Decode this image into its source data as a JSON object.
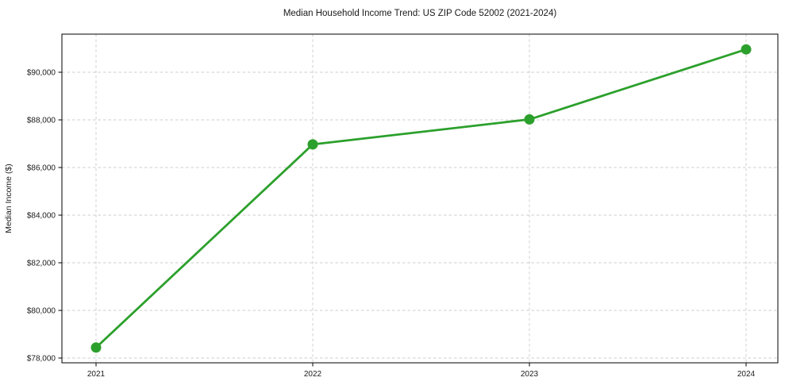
{
  "figure": {
    "background": "#ffffff"
  },
  "chart_data": {
    "type": "line",
    "title": "Median Household Income Trend: US ZIP Code 52002 (2021-2024)",
    "xlabel": "",
    "ylabel": "Median Income ($)",
    "categories": [
      "2021",
      "2022",
      "2023",
      "2024"
    ],
    "series": [
      {
        "name": "median-household-income",
        "values": [
          78440,
          86970,
          88020,
          90960
        ],
        "color": "#2ca02c",
        "marker": "circle",
        "line_style": "solid"
      }
    ],
    "ylim": [
      77800,
      91600
    ],
    "yticks": [
      78000,
      80000,
      82000,
      84000,
      86000,
      88000,
      90000
    ],
    "ytick_labels": [
      "$78,000",
      "$80,000",
      "$82,000",
      "$84,000",
      "$86,000",
      "$88,000",
      "$90,000"
    ],
    "grid": "dashed",
    "grid_color": "#cccccc",
    "spine_color": "#000000",
    "text_color": "#1a1a1a",
    "legend": "none"
  }
}
